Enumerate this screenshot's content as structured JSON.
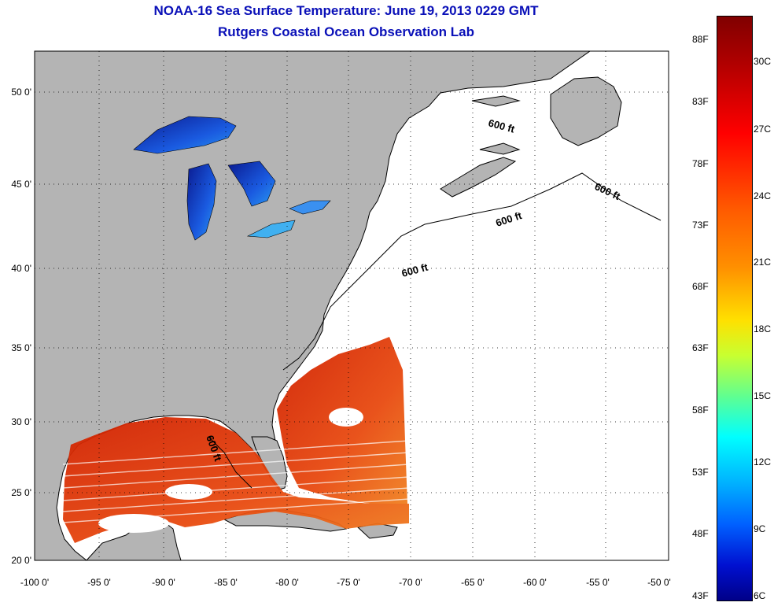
{
  "title": {
    "line1": "NOAA-16 Sea Surface Temperature:  June 19, 2013 0229 GMT",
    "line2": "Rutgers Coastal Ocean Observation Lab"
  },
  "map": {
    "lon_ticks": [
      "-100 0'",
      "-95 0'",
      "-90 0'",
      "-85 0'",
      "-80 0'",
      "-75 0'",
      "-70 0'",
      "-65 0'",
      "-60 0'",
      "-55 0'",
      "-50 0'"
    ],
    "lat_ticks": [
      "50 0'",
      "45 0'",
      "40 0'",
      "35 0'",
      "30 0'",
      "25 0'",
      "20 0'"
    ],
    "contour_labels": [
      "600 ft",
      "600 ft",
      "600 ft",
      "600 ft",
      "600 ft"
    ],
    "colors": {
      "land": "#b4b4b4",
      "ocean_no_data": "#ffffff"
    }
  },
  "colorbar": {
    "fahrenheit": [
      "88F",
      "83F",
      "78F",
      "73F",
      "68F",
      "63F",
      "58F",
      "53F",
      "48F",
      "43F"
    ],
    "celsius": [
      "30C",
      "27C",
      "24C",
      "21C",
      "18C",
      "15C",
      "12C",
      "9C",
      "6C"
    ]
  }
}
